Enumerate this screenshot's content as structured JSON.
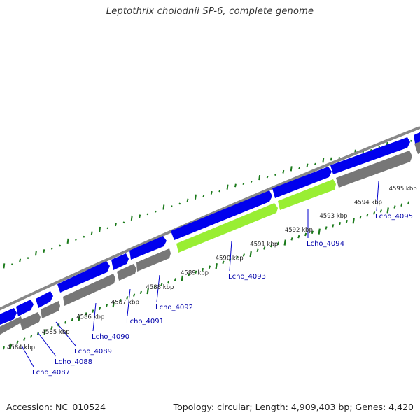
{
  "title": "Leptothrix cholodnii SP-6, complete genome",
  "footer": {
    "accession": "Accession: NC_010524",
    "summary": "Topology: circular; Length: 4,909,403 bp; Genes: 4,420"
  },
  "scale_ticks": [
    "4584 kbp",
    "4585 kbp",
    "4586 kbp",
    "4587 kbp",
    "4588 kbp",
    "4589 kbp",
    "4590 kbp",
    "4591 kbp",
    "4592 kbp",
    "4593 kbp",
    "4594 kbp",
    "4595 kbp"
  ],
  "gene_labels": [
    "Lcho_4087",
    "Lcho_4088",
    "Lcho_4089",
    "Lcho_4090",
    "Lcho_4091",
    "Lcho_4092",
    "Lcho_4093",
    "Lcho_4094",
    "Lcho_4095"
  ],
  "colors": {
    "forward_cds": "#0000ee",
    "highlight_cds": "#99ee33",
    "reverse_cds": "#777777",
    "backbone": "#888888",
    "gc_ticks": "#1a7a1a",
    "gene_label": "#0000aa",
    "leader_line": "#0000cc"
  }
}
